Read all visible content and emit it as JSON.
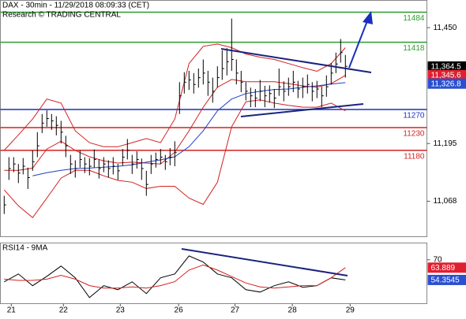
{
  "chart_data": [
    {
      "type": "ohlc",
      "title": "DAX - 30min - 11/29/2018 08:09:33 (CET)",
      "subtitle": "Research © TRADING CENTRAL",
      "color": "#000000",
      "x": [
        0,
        1,
        2,
        3,
        4,
        5,
        6,
        7,
        8,
        9,
        10,
        11,
        12,
        13,
        14,
        15,
        16,
        17,
        18,
        19,
        20,
        21,
        22,
        23,
        24,
        25,
        26,
        27,
        28,
        29,
        30,
        31,
        32,
        33,
        34,
        35,
        36,
        37,
        38,
        39,
        40,
        41,
        42,
        43,
        44,
        45,
        46,
        47,
        48,
        49,
        50,
        51,
        52,
        53,
        54,
        55,
        56,
        57,
        58,
        59,
        60,
        61,
        62,
        63,
        64,
        65,
        66,
        67,
        68,
        69,
        70,
        71,
        72
      ],
      "high": [
        11080,
        11165,
        11165,
        11150,
        11163,
        11142,
        11180,
        11220,
        11260,
        11268,
        11260,
        11255,
        11245,
        11212,
        11170,
        11158,
        11180,
        11165,
        11163,
        11182,
        11160,
        11165,
        11158,
        11165,
        11150,
        11183,
        11205,
        11170,
        11178,
        11162,
        11135,
        11170,
        11175,
        11183,
        11170,
        11185,
        11200,
        11330,
        11352,
        11355,
        11350,
        11360,
        11380,
        11355,
        11340,
        11365,
        11400,
        11405,
        11470,
        11380,
        11355,
        11330,
        11318,
        11315,
        11335,
        11322,
        11323,
        11315,
        11360,
        11332,
        11340,
        11355,
        11333,
        11340,
        11347,
        11330,
        11333,
        11320,
        11345,
        11372,
        11395,
        11425,
        11390
      ],
      "low": [
        11040,
        11115,
        11132,
        11108,
        11127,
        11095,
        11135,
        11165,
        11218,
        11232,
        11225,
        11213,
        11195,
        11165,
        11128,
        11120,
        11142,
        11130,
        11125,
        11142,
        11118,
        11132,
        11120,
        11127,
        11115,
        11147,
        11160,
        11128,
        11140,
        11115,
        11080,
        11128,
        11142,
        11150,
        11137,
        11147,
        11145,
        11260,
        11305,
        11313,
        11305,
        11318,
        11325,
        11300,
        11285,
        11318,
        11335,
        11345,
        11355,
        11325,
        11308,
        11290,
        11275,
        11275,
        11288,
        11275,
        11285,
        11273,
        11300,
        11288,
        11300,
        11308,
        11295,
        11295,
        11305,
        11288,
        11295,
        11275,
        11298,
        11325,
        11350,
        11373,
        11340
      ],
      "close": [
        11060,
        11140,
        11150,
        11130,
        11145,
        11120,
        11155,
        11190,
        11240,
        11250,
        11245,
        11235,
        11220,
        11190,
        11150,
        11140,
        11160,
        11150,
        11145,
        11160,
        11140,
        11150,
        11140,
        11145,
        11135,
        11165,
        11180,
        11150,
        11160,
        11140,
        11105,
        11150,
        11160,
        11165,
        11155,
        11165,
        11175,
        11300,
        11330,
        11335,
        11325,
        11340,
        11350,
        11330,
        11310,
        11340,
        11360,
        11375,
        11380,
        11350,
        11330,
        11310,
        11300,
        11295,
        11310,
        11300,
        11305,
        11295,
        11320,
        11310,
        11320,
        11330,
        11315,
        11320,
        11325,
        11310,
        11315,
        11300,
        11320,
        11350,
        11370,
        11395,
        11365
      ],
      "indicators": {
        "x": [
          0,
          3,
          6,
          9,
          12,
          15,
          18,
          21,
          24,
          27,
          30,
          33,
          36,
          39,
          42,
          45,
          48,
          51,
          54,
          57,
          60,
          63,
          66,
          69,
          72
        ],
        "series": [
          {
            "color": "#d42020",
            "values": [
              11180,
              11214,
              11249,
              11293,
              11284,
              11223,
              11197,
              11188,
              11188,
              11197,
              11206,
              11197,
              11249,
              11371,
              11409,
              11414,
              11406,
              11392,
              11385,
              11380,
              11371,
              11362,
              11354,
              11371,
              11406
            ]
          },
          {
            "color": "#d42020",
            "values": [
              11093,
              11058,
              11032,
              11075,
              11119,
              11136,
              11136,
              11124,
              11114,
              11110,
              11096,
              11101,
              11101,
              11075,
              11061,
              11110,
              11232,
              11287,
              11291,
              11284,
              11279,
              11275,
              11275,
              11284,
              11267
            ]
          },
          {
            "color": "#d42020",
            "values": [
              11136,
              11136,
              11141,
              11183,
              11200,
              11180,
              11166,
              11157,
              11152,
              11154,
              11152,
              11150,
              11176,
              11223,
              11275,
              11319,
              11336,
              11331,
              11331,
              11331,
              11327,
              11322,
              11319,
              11327,
              11345
            ]
          },
          {
            "color": "#1f3fbf",
            "values": [
              null,
              null,
              11124,
              11131,
              11136,
              11140,
              11141,
              11143,
              11145,
              11148,
              11154,
              11159,
              11166,
              11188,
              11223,
              11267,
              11293,
              11305,
              11310,
              11314,
              11315,
              11319,
              11322,
              11326,
              11329
            ]
          }
        ]
      },
      "levels": [
        {
          "value": 11484,
          "color": "#2e9e2e"
        },
        {
          "value": 11418,
          "color": "#2e9e2e"
        },
        {
          "value": 11270,
          "color": "#1a2fc0"
        },
        {
          "value": 11230,
          "color": "#d42020"
        },
        {
          "value": 11180,
          "color": "#d42020"
        }
      ],
      "price_tags": [
        {
          "value": 11364.5,
          "label": "11,364.5",
          "color": "#000000"
        },
        {
          "value": 11345.6,
          "label": "11,345.6",
          "color": "#e0202f"
        },
        {
          "value": 11326.8,
          "label": "11,326.8",
          "color": "#2a4fd0"
        }
      ],
      "xlim": [
        -0.8,
        89.2
      ],
      "ylim": [
        10990,
        11510
      ],
      "yticks": [
        {
          "value": 11450,
          "label": "11,450"
        },
        {
          "value": 11195,
          "label": "11,195"
        },
        {
          "value": 11068,
          "label": "11,068"
        }
      ],
      "xticks": [
        {
          "value": 1.5,
          "label": "21"
        },
        {
          "value": 12.5,
          "label": "22"
        },
        {
          "value": 24.5,
          "label": "23"
        },
        {
          "value": 36.8,
          "label": "26"
        },
        {
          "value": 48.7,
          "label": "27"
        },
        {
          "value": 60.8,
          "label": "28"
        },
        {
          "value": 73,
          "label": "29"
        }
      ]
    },
    {
      "type": "line",
      "title": "RSI14 - 9MA",
      "x": [
        0,
        3,
        6,
        9,
        12,
        15,
        18,
        21,
        24,
        27,
        30,
        33,
        36,
        39,
        42,
        45,
        48,
        51,
        54,
        57,
        60,
        63,
        66,
        69,
        72
      ],
      "series": [
        {
          "color": "#000000",
          "values": [
            52.9,
            59.0,
            49.9,
            57.2,
            65.1,
            56.0,
            40.7,
            49.9,
            46.8,
            52.9,
            43.8,
            56.0,
            59.0,
            73.0,
            68.2,
            59.0,
            56.0,
            46.8,
            45.0,
            49.9,
            52.9,
            48.7,
            49.9,
            56.0,
            54.35
          ]
        },
        {
          "color": "#d42020",
          "values": [
            55,
            54,
            54,
            55,
            58,
            55,
            50,
            48,
            48,
            49,
            48,
            50,
            53,
            62,
            66,
            62,
            57,
            52,
            49,
            48,
            49,
            50,
            50,
            56,
            63.9
          ]
        }
      ],
      "price_tags": [
        {
          "value": 63.889,
          "color": "#e0202f"
        },
        {
          "value": 54.3545,
          "color": "#2a4fd0"
        }
      ],
      "xlim": [
        -0.8,
        89.2
      ],
      "ylim": [
        36,
        83
      ],
      "yticks": [
        70
      ]
    }
  ]
}
